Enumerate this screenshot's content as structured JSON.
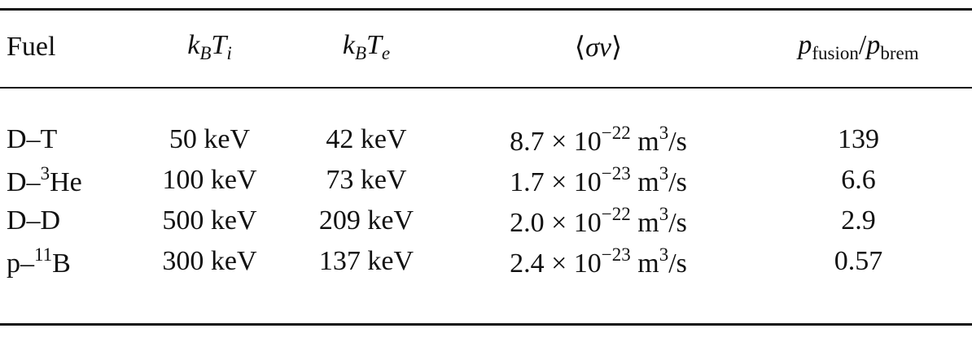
{
  "table": {
    "header": [
      [
        {
          "text": "Fuel"
        }
      ],
      [
        {
          "text": "k",
          "style": "it"
        },
        {
          "text": "B",
          "style": "subit"
        },
        {
          "text": "T",
          "style": "it"
        },
        {
          "text": "i",
          "style": "subit"
        }
      ],
      [
        {
          "text": "k",
          "style": "it"
        },
        {
          "text": "B",
          "style": "subit"
        },
        {
          "text": "T",
          "style": "it"
        },
        {
          "text": "e",
          "style": "subit"
        }
      ],
      [
        {
          "text": "⟨"
        },
        {
          "text": "σv",
          "style": "it"
        },
        {
          "text": "⟩"
        }
      ],
      [
        {
          "text": "p",
          "style": "it"
        },
        {
          "text": "fusion",
          "style": "sub"
        },
        {
          "text": "/"
        },
        {
          "text": "p",
          "style": "it"
        },
        {
          "text": "brem",
          "style": "sub"
        }
      ]
    ],
    "rows": [
      [
        [
          {
            "text": "D–T"
          }
        ],
        "50 keV",
        "42 keV",
        [
          {
            "text": "8.7 × 10"
          },
          {
            "text": "−22",
            "style": "sup"
          },
          {
            "text": " m"
          },
          {
            "text": "3",
            "style": "sup"
          },
          {
            "text": "/s"
          }
        ],
        139
      ],
      [
        [
          {
            "text": "D–"
          },
          {
            "text": "3",
            "style": "sup"
          },
          {
            "text": "He"
          }
        ],
        "100 keV",
        "73 keV",
        [
          {
            "text": "1.7 × 10"
          },
          {
            "text": "−23",
            "style": "sup"
          },
          {
            "text": " m"
          },
          {
            "text": "3",
            "style": "sup"
          },
          {
            "text": "/s"
          }
        ],
        6.6
      ],
      [
        [
          {
            "text": "D–D"
          }
        ],
        "500 keV",
        "209 keV",
        [
          {
            "text": "2.0 × 10"
          },
          {
            "text": "−22",
            "style": "sup"
          },
          {
            "text": " m"
          },
          {
            "text": "3",
            "style": "sup"
          },
          {
            "text": "/s"
          }
        ],
        2.9
      ],
      [
        [
          {
            "text": "p–"
          },
          {
            "text": "11",
            "style": "sup"
          },
          {
            "text": "B"
          }
        ],
        "300 keV",
        "137 keV",
        [
          {
            "text": "2.4 × 10"
          },
          {
            "text": "−23",
            "style": "sup"
          },
          {
            "text": " m"
          },
          {
            "text": "3",
            "style": "sup"
          },
          {
            "text": "/s"
          }
        ],
        0.57
      ]
    ]
  }
}
